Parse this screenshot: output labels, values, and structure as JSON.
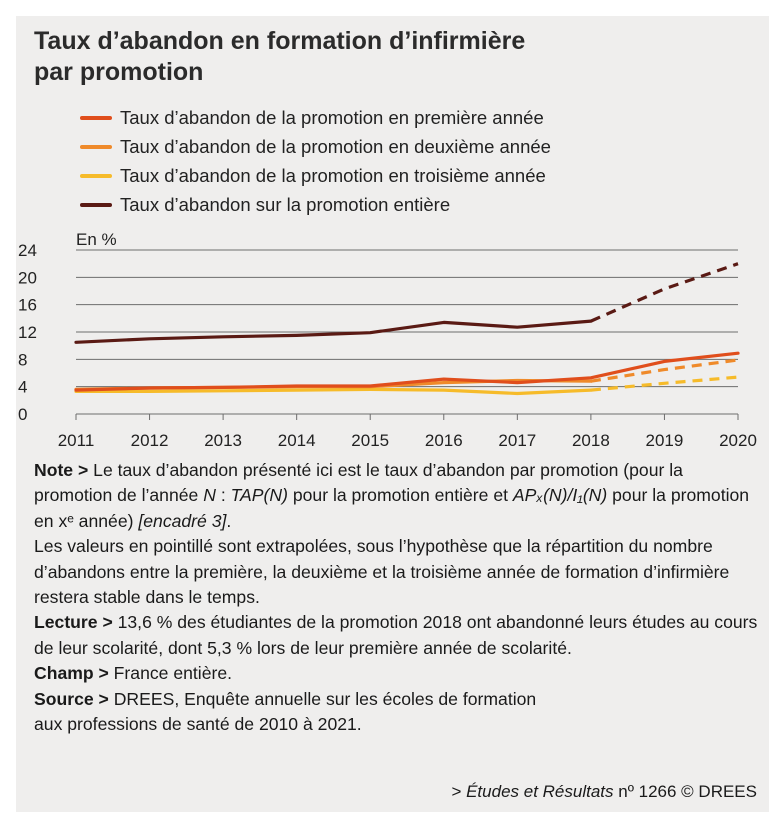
{
  "title_line1": "Taux d’abandon en formation d’infirmière",
  "title_line2": "par promotion",
  "notes": {
    "note_label": "Note >",
    "note_text_a": " Le taux d’abandon présenté ici est le taux d’abandon par promotion (pour la promotion de l’année ",
    "note_N": "N",
    "note_text_b": " : ",
    "note_tap": "TAP(N)",
    "note_text_c": " pour la promotion entière et ",
    "note_ap": "APₓ(N)/I₁(N)",
    "note_text_d": " pour la promotion en xᵉ année) ",
    "note_ref": "[encadré 3]",
    "note_text_e": ".",
    "extrap_text": "Les valeurs en pointillé sont extrapolées, sous l’hypothèse que la répartition du nombre d’abandons entre la première, la deuxième et la troisième année de formation d’infirmière restera stable dans le temps.",
    "lecture_label": "Lecture >",
    "lecture_text": " 13,6 % des étudiantes de la promotion 2018 ont abandonné leurs études au cours de leur scolarité, dont 5,3 % lors de leur première année de scolarité.",
    "champ_label": "Champ >",
    "champ_text": " France entière.",
    "source_label": "Source >",
    "source_text": " DREES, Enquête annuelle sur les écoles de formation",
    "source_text2": "aux professions de santé de 2010 à 2021."
  },
  "credit": {
    "prefix": "> ",
    "pub": "Études et Résultats",
    "suffix": " nº 1266 © DREES"
  },
  "chart_data": {
    "type": "line",
    "ylabel": "En %",
    "ylim": [
      0,
      24
    ],
    "yticks": [
      0,
      4,
      8,
      12,
      16,
      20,
      24
    ],
    "x": [
      2011,
      2012,
      2013,
      2014,
      2015,
      2016,
      2017,
      2018,
      2019,
      2020
    ],
    "grid": true,
    "legend_position": "top",
    "series": [
      {
        "name": "Taux d’abandon de la promotion en première année",
        "color": "#e04e1c",
        "values": [
          3.5,
          3.8,
          3.9,
          4.1,
          4.1,
          5.1,
          4.6,
          5.3,
          7.7,
          8.9
        ],
        "solid_until": 2020
      },
      {
        "name": "Taux d’abandon de la promotion en deuxième année",
        "color": "#ef8a2a",
        "values": [
          3.6,
          3.8,
          3.9,
          4.0,
          4.0,
          4.6,
          4.9,
          4.8,
          6.5,
          7.9
        ],
        "solid_until": 2018
      },
      {
        "name": "Taux d’abandon de la promotion en troisième année",
        "color": "#f6bb2a",
        "values": [
          3.3,
          3.3,
          3.4,
          3.5,
          3.6,
          3.5,
          3.0,
          3.5,
          4.5,
          5.4
        ],
        "solid_until": 2018
      },
      {
        "name": "Taux d’abandon sur la promotion entière",
        "color": "#5a1a14",
        "values": [
          10.5,
          11.0,
          11.3,
          11.5,
          11.9,
          13.4,
          12.7,
          13.6,
          18.3,
          22.0
        ],
        "solid_until": 2018
      }
    ]
  }
}
